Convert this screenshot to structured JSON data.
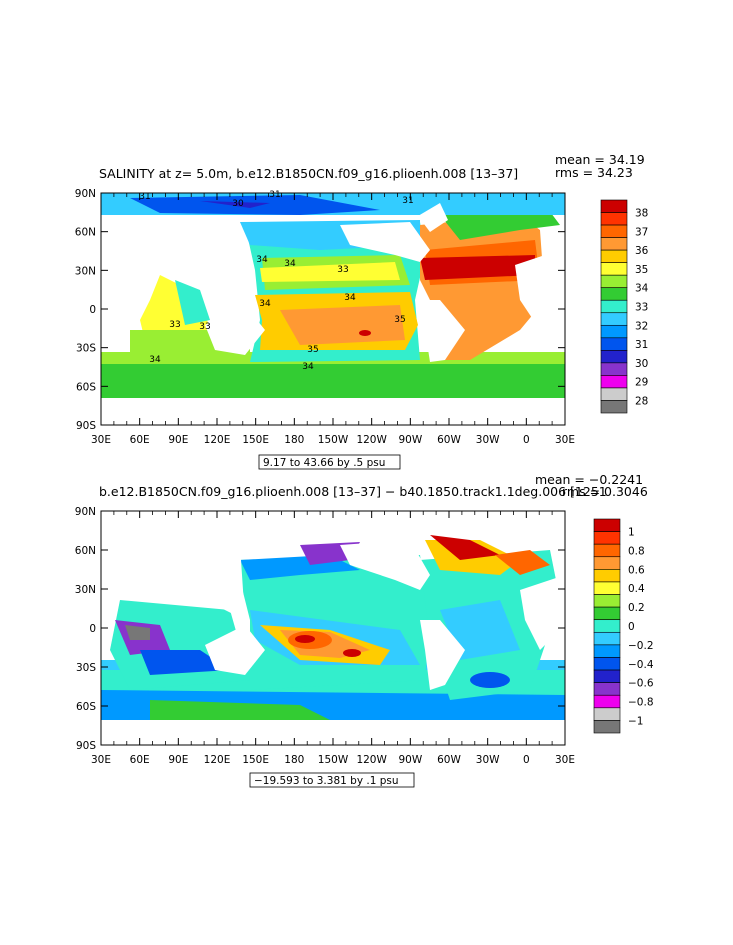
{
  "map1": {
    "title": "SALINITY at z=    5.0m, b.e12.B1850CN.f09_g16.plioenh.008 [13–37]",
    "stat_mean": "mean = 34.19",
    "stat_rms": "rms = 34.23",
    "range_label": "9.17 to 43.66 by .5 psu",
    "colorbar": {
      "labels": [
        "38",
        "37",
        "36",
        "35",
        "34",
        "33",
        "32",
        "31",
        "30",
        "29",
        "28"
      ],
      "colors": [
        "#cc0000",
        "#ff3300",
        "#ff6600",
        "#ff9933",
        "#ffcc00",
        "#ffff33",
        "#99ee33",
        "#33cc33",
        "#33eecc",
        "#33ccff",
        "#0099ff",
        "#0055ee",
        "#2222cc",
        "#8833cc",
        "#ee00ee",
        "#cccccc",
        "#777777"
      ]
    },
    "contour_labels": [
      "31",
      "31",
      "31",
      "30",
      "34",
      "34",
      "33",
      "33",
      "34",
      "35",
      "35",
      "34",
      "34",
      "33",
      "34"
    ]
  },
  "map2": {
    "title": "b.e12.B1850CN.f09_g16.plioenh.008 [13–37] − b40.1850.track1.1deg.006 [1251",
    "stat_mean": "mean = −0.2241",
    "stat_rms": "rms = 0.3046",
    "range_label": "−19.593 to 3.381 by .1 psu",
    "colorbar": {
      "labels": [
        "1",
        "0.8",
        "0.6",
        "0.4",
        "0.2",
        "0",
        "−0.2",
        "−0.4",
        "−0.6",
        "−0.8",
        "−1"
      ],
      "colors": [
        "#cc0000",
        "#ff3300",
        "#ff6600",
        "#ff9933",
        "#ffcc00",
        "#ffff33",
        "#99ee33",
        "#33cc33",
        "#33eecc",
        "#33ccff",
        "#0099ff",
        "#0055ee",
        "#2222cc",
        "#8833cc",
        "#ee00ee",
        "#cccccc",
        "#777777"
      ]
    }
  },
  "axes": {
    "y_labels": [
      "90N",
      "60N",
      "30N",
      "0",
      "30S",
      "60S",
      "90S"
    ],
    "x_labels": [
      "30E",
      "60E",
      "90E",
      "120E",
      "150E",
      "180",
      "150W",
      "120W",
      "90W",
      "60W",
      "30W",
      "0",
      "30E"
    ]
  }
}
